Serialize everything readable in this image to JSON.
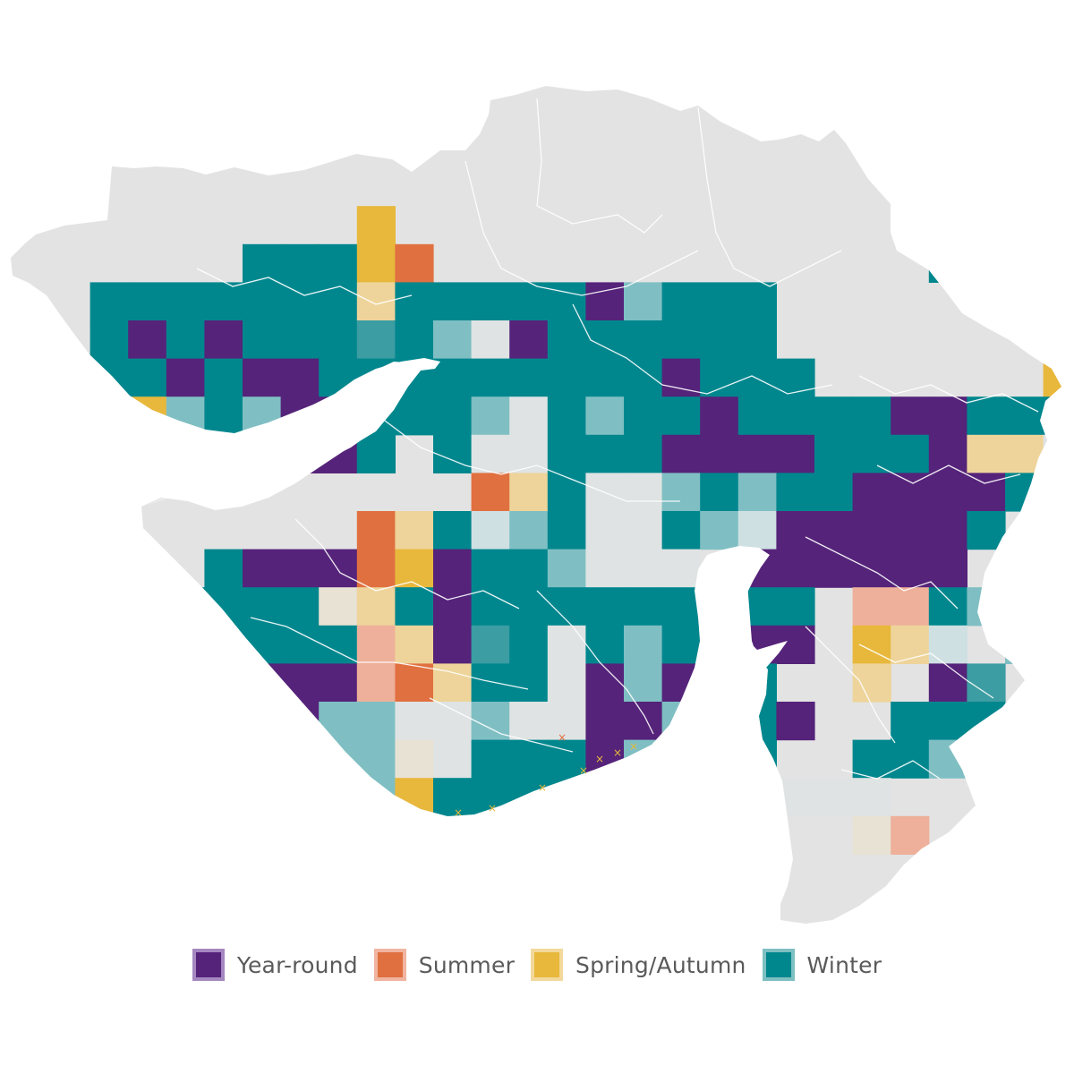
{
  "legend": {
    "items": [
      {
        "key": "year_round",
        "label": "Year-round",
        "color": "#55237a",
        "light": "#a588c0"
      },
      {
        "key": "summer",
        "label": "Summer",
        "color": "#e07040",
        "light": "#f0b4a0"
      },
      {
        "key": "spring_autumn",
        "label": "Spring/Autumn",
        "color": "#e8b83c",
        "light": "#f2d89a"
      },
      {
        "key": "winter",
        "label": "Winter",
        "color": "#00878e",
        "light": "#7ebfc2"
      }
    ]
  },
  "map": {
    "land_color": "#e3e3e3",
    "border_color": "#ffffff",
    "pale_color": "#dcdcdc",
    "codes": {
      "P": "#55237a",
      "p": "#8c6aa8",
      "O": "#e07040",
      "o": "#eeb09a",
      "Y": "#e8b83c",
      "y": "#eed49a",
      "T": "#00878e",
      "t": "#7fbfc3",
      "u": "#3c9da2",
      "g": "#dfe3e3",
      "b": "#cfe0e2",
      "c": "#e8e2d4"
    },
    "grid_rows": [
      "........................Ts...............",
      "........................T............T..yYtt..",
      "........Y..............tT...........yYcTt",
      ".....TTTYO.............TTT.........yyyTTTo",
      ".TTTTTTTyTTTTTPtTTT........yyTTTPt",
      ".TPTPTTTuTtgPTTTTTT.......tyyTTTy",
      ".TTPTPPTTTTTTTTTPTTT......YyPPTTT",
      ".TYtTtPPTTTtgTtTTPTTTTPPTTTy..T",
      "......PPT.TggTTTPPPPTTTPyyg..",
      "...........OyTggtTtTTPPPPTtgt",
      "........OyTbtTggTtbPPPPPT",
      "....TPPPOYPTTtggg.PPPPPP",
      "...TTTTcyTPTTTTTTTTT.ooTtTT",
      "....TTTToyPuTgTtTTPP.Yyb.tt",
      ".....PPPoOyTTgPtPTT..y.Pu",
      ".....PPttggtggPPtTTP..TTTt",
      "......PttcgTTTPtTuT..TTtt",
      ".......TtYTTTTTuu..ggg",
      "........TTttTTTTTT...co",
      "...........PTTTP........PO",
      "........................PO",
      "........................y",
      "........................T"
    ]
  }
}
